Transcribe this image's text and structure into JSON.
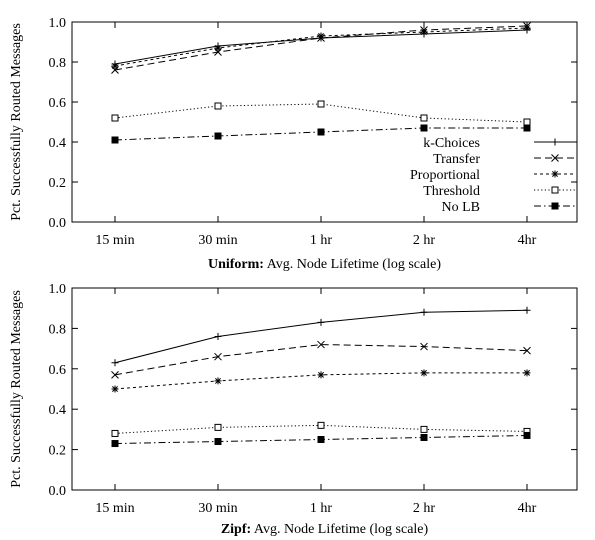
{
  "chart_data": [
    {
      "type": "line",
      "xlabel_bold": "Uniform:",
      "xlabel_rest": " Avg. Node Lifetime (log scale)",
      "ylabel": "Pct. Successfully Routed Messages",
      "categories": [
        "15 min",
        "30 min",
        "1 hr",
        "2 hr",
        "4hr"
      ],
      "ylim": [
        0.0,
        1.0
      ],
      "yticks": [
        "0.0",
        "0.2",
        "0.4",
        "0.6",
        "0.8",
        "1.0"
      ],
      "legend_position": "lower-right",
      "series": [
        {
          "name": "k-Choices",
          "marker": "plus",
          "dash": "solid",
          "values": [
            0.79,
            0.88,
            0.92,
            0.94,
            0.96
          ]
        },
        {
          "name": "Transfer",
          "marker": "x",
          "dash": "dashed",
          "values": [
            0.76,
            0.85,
            0.92,
            0.96,
            0.98
          ]
        },
        {
          "name": "Proportional",
          "marker": "star",
          "dash": "short-dashed",
          "values": [
            0.78,
            0.87,
            0.93,
            0.95,
            0.97
          ]
        },
        {
          "name": "Threshold",
          "marker": "open-square",
          "dash": "dotted",
          "values": [
            0.52,
            0.58,
            0.59,
            0.52,
            0.5
          ]
        },
        {
          "name": "No LB",
          "marker": "filled-square",
          "dash": "dash-dot",
          "values": [
            0.41,
            0.43,
            0.45,
            0.47,
            0.47
          ]
        }
      ]
    },
    {
      "type": "line",
      "xlabel_bold": "Zipf:",
      "xlabel_rest": " Avg. Node Lifetime (log scale)",
      "ylabel": "Pct. Successfully Routed Messages",
      "categories": [
        "15 min",
        "30 min",
        "1 hr",
        "2 hr",
        "4hr"
      ],
      "ylim": [
        0.0,
        1.0
      ],
      "yticks": [
        "0.0",
        "0.2",
        "0.4",
        "0.6",
        "0.8",
        "1.0"
      ],
      "series": [
        {
          "name": "k-Choices",
          "marker": "plus",
          "dash": "solid",
          "values": [
            0.63,
            0.76,
            0.83,
            0.88,
            0.89
          ]
        },
        {
          "name": "Transfer",
          "marker": "x",
          "dash": "dashed",
          "values": [
            0.57,
            0.66,
            0.72,
            0.71,
            0.69
          ]
        },
        {
          "name": "Proportional",
          "marker": "star",
          "dash": "short-dashed",
          "values": [
            0.5,
            0.54,
            0.57,
            0.58,
            0.58
          ]
        },
        {
          "name": "Threshold",
          "marker": "open-square",
          "dash": "dotted",
          "values": [
            0.28,
            0.31,
            0.32,
            0.3,
            0.29
          ]
        },
        {
          "name": "No LB",
          "marker": "filled-square",
          "dash": "dash-dot",
          "values": [
            0.23,
            0.24,
            0.25,
            0.26,
            0.27
          ]
        }
      ]
    }
  ]
}
